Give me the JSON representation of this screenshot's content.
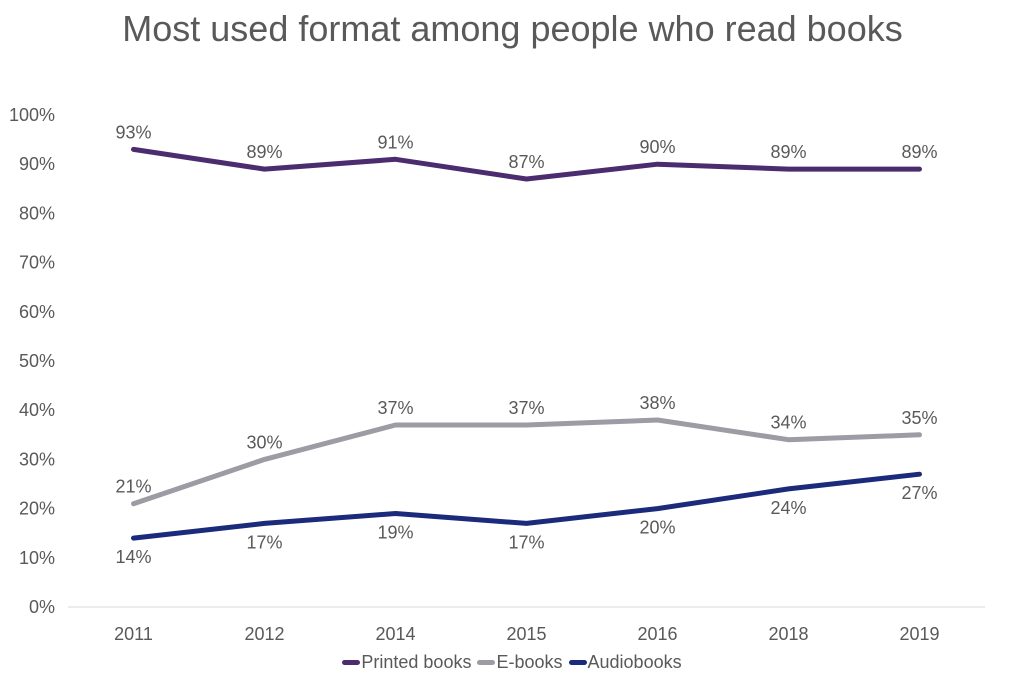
{
  "chart_data": {
    "type": "line",
    "title": "Most used format among people who read books",
    "categories": [
      "2011",
      "2012",
      "2014",
      "2015",
      "2016",
      "2018",
      "2019"
    ],
    "ylim": [
      0,
      100
    ],
    "y_ticks": [
      "0%",
      "10%",
      "20%",
      "30%",
      "40%",
      "50%",
      "60%",
      "70%",
      "80%",
      "90%",
      "100%"
    ],
    "grid": false,
    "legend_position": "bottom",
    "series": [
      {
        "name": "Printed books",
        "color": "#4b2c6e",
        "values": [
          93,
          89,
          91,
          87,
          90,
          89,
          89
        ],
        "labels": [
          "93%",
          "89%",
          "91%",
          "87%",
          "90%",
          "89%",
          "89%"
        ],
        "label_side": "above"
      },
      {
        "name": "E-books",
        "color": "#9d9ba3",
        "values": [
          21,
          30,
          37,
          37,
          38,
          34,
          35
        ],
        "labels": [
          "21%",
          "30%",
          "37%",
          "37%",
          "38%",
          "34%",
          "35%"
        ],
        "label_side": "above"
      },
      {
        "name": "Audiobooks",
        "color": "#1b2a7b",
        "values": [
          14,
          17,
          19,
          17,
          20,
          24,
          27
        ],
        "labels": [
          "14%",
          "17%",
          "19%",
          "17%",
          "20%",
          "24%",
          "27%"
        ],
        "label_side": "below"
      }
    ]
  }
}
